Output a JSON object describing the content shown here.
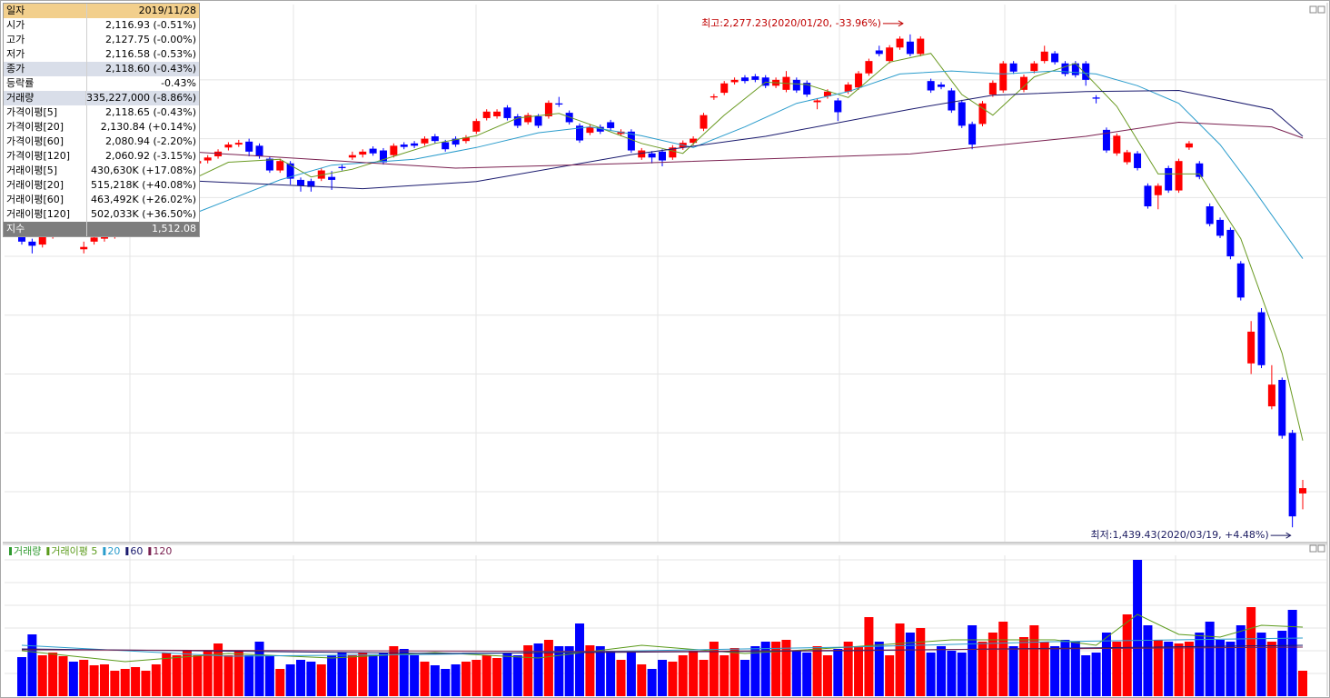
{
  "chart_data": [
    {
      "type": "candlestick",
      "open": [
        1935,
        1925,
        1920,
        1935,
        1950,
        1960,
        1912,
        1925,
        1930,
        1935,
        1950,
        1975,
        1990,
        2010,
        2020,
        2035,
        2045,
        2058,
        2063,
        2070,
        2085,
        2090,
        2095,
        2088,
        2066,
        2046,
        2058,
        2030,
        2028,
        2032,
        2035,
        2052,
        2068,
        2073,
        2083,
        2080,
        2072,
        2090,
        2092,
        2092,
        2104,
        2094,
        2100,
        2096,
        2112,
        2135,
        2138,
        2153,
        2138,
        2128,
        2138,
        2138,
        2160,
        2144,
        2122,
        2110,
        2120,
        2128,
        2108,
        2112,
        2068,
        2075,
        2078,
        2068,
        2085,
        2093,
        2117,
        2170,
        2178,
        2196,
        2204,
        2206,
        2204,
        2190,
        2183,
        2200,
        2195,
        2162,
        2172,
        2165,
        2180,
        2187,
        2211,
        2250,
        2232,
        2255,
        2265,
        2244,
        2198,
        2192,
        2182,
        2162,
        2125,
        2125,
        2175,
        2182,
        2228,
        2183,
        2215,
        2232,
        2245,
        2228,
        2228,
        2228,
        2170,
        2115,
        2075,
        2060,
        2075,
        2020,
        2004,
        2050,
        2012,
        2085,
        2058,
        1985,
        1962,
        1945,
        1888,
        1718,
        1805,
        1645,
        1690,
        1600,
        1497
      ],
      "high": [
        1940,
        1930,
        1940,
        1955,
        1965,
        1965,
        1925,
        1937,
        1940,
        1955,
        1980,
        1995,
        2015,
        2025,
        2040,
        2050,
        2060,
        2066,
        2072,
        2082,
        2094,
        2098,
        2100,
        2092,
        2070,
        2066,
        2062,
        2034,
        2032,
        2050,
        2045,
        2056,
        2078,
        2082,
        2087,
        2084,
        2092,
        2094,
        2096,
        2104,
        2108,
        2098,
        2104,
        2106,
        2134,
        2150,
        2150,
        2157,
        2142,
        2144,
        2142,
        2165,
        2171,
        2148,
        2126,
        2124,
        2124,
        2132,
        2116,
        2116,
        2084,
        2079,
        2082,
        2089,
        2097,
        2104,
        2144,
        2176,
        2198,
        2204,
        2208,
        2210,
        2208,
        2204,
        2215,
        2204,
        2199,
        2169,
        2184,
        2169,
        2196,
        2215,
        2236,
        2258,
        2259,
        2274,
        2277.23,
        2274,
        2202,
        2196,
        2186,
        2166,
        2129,
        2164,
        2199,
        2232,
        2232,
        2209,
        2232,
        2258,
        2249,
        2232,
        2232,
        2232,
        2174,
        2119,
        2109,
        2081,
        2079,
        2024,
        2024,
        2054,
        2066,
        2096,
        2062,
        1990,
        1966,
        1949,
        1892,
        1790,
        1812,
        1715,
        1694,
        1605,
        1520
      ],
      "low": [
        1920,
        1905,
        1915,
        1930,
        1945,
        1940,
        1905,
        1920,
        1925,
        1930,
        1945,
        1970,
        1985,
        2005,
        2015,
        2030,
        2040,
        2054,
        2058,
        2066,
        2080,
        2086,
        2070,
        2066,
        2042,
        2042,
        2022,
        2010,
        2010,
        2028,
        2013,
        2046,
        2064,
        2068,
        2071,
        2056,
        2068,
        2082,
        2084,
        2088,
        2092,
        2078,
        2086,
        2092,
        2108,
        2131,
        2134,
        2131,
        2118,
        2124,
        2118,
        2134,
        2154,
        2124,
        2093,
        2106,
        2108,
        2114,
        2104,
        2076,
        2064,
        2058,
        2053,
        2064,
        2081,
        2089,
        2113,
        2166,
        2174,
        2192,
        2194,
        2196,
        2186,
        2186,
        2179,
        2178,
        2171,
        2150,
        2168,
        2130,
        2176,
        2183,
        2207,
        2240,
        2228,
        2251,
        2240,
        2240,
        2178,
        2184,
        2144,
        2118,
        2082,
        2121,
        2171,
        2178,
        2210,
        2179,
        2211,
        2228,
        2226,
        2206,
        2204,
        2190,
        2160,
        2076,
        2071,
        2056,
        2046,
        1981,
        1980,
        2008,
        2008,
        2081,
        2031,
        1951,
        1931,
        1895,
        1825,
        1700,
        1710,
        1640,
        1590,
        1439.43,
        1470
      ],
      "close": [
        1925,
        1918,
        1935,
        1950,
        1960,
        1945,
        1916,
        1932,
        1935,
        1950,
        1975,
        1990,
        2010,
        2020,
        2035,
        2045,
        2055,
        2062,
        2068,
        2078,
        2090,
        2093,
        2078,
        2070,
        2046,
        2062,
        2032,
        2020,
        2018,
        2046,
        2030,
        2050,
        2072,
        2078,
        2075,
        2060,
        2088,
        2086,
        2088,
        2100,
        2096,
        2082,
        2090,
        2102,
        2130,
        2146,
        2146,
        2135,
        2122,
        2140,
        2122,
        2161,
        2158,
        2128,
        2097,
        2120,
        2112,
        2118,
        2112,
        2080,
        2080,
        2068,
        2063,
        2085,
        2093,
        2100,
        2140,
        2172,
        2194,
        2200,
        2198,
        2200,
        2190,
        2200,
        2205,
        2182,
        2175,
        2165,
        2180,
        2145,
        2192,
        2211,
        2232,
        2244,
        2255,
        2270,
        2244,
        2270,
        2182,
        2188,
        2148,
        2122,
        2090,
        2160,
        2195,
        2228,
        2214,
        2205,
        2228,
        2248,
        2230,
        2210,
        2208,
        2200,
        2168,
        2080,
        2105,
        2077,
        2050,
        1985,
        2020,
        2012,
        2062,
        2092,
        2035,
        1955,
        1935,
        1900,
        1830,
        1772,
        1715,
        1682,
        1595,
        1458,
        1506
      ],
      "up_color": "#ff0000",
      "down_color": "#0000ff",
      "ylim": [
        1415,
        2328
      ],
      "yticks": [
        1500,
        1600,
        1700,
        1800,
        1900,
        2000,
        2100,
        2200
      ],
      "grid": true,
      "lines": [
        {
          "color": "#6a9a22",
          "x": [
            17,
            20,
            25,
            28,
            32,
            36,
            40,
            44,
            48,
            52,
            56,
            60,
            64,
            68,
            72,
            76,
            80,
            84,
            88,
            91,
            94,
            98,
            102,
            106,
            110,
            114,
            118,
            122,
            124
          ],
          "values": [
            2035,
            2060,
            2065,
            2035,
            2048,
            2070,
            2092,
            2105,
            2135,
            2143,
            2118,
            2092,
            2075,
            2140,
            2196,
            2192,
            2170,
            2230,
            2245,
            2175,
            2140,
            2205,
            2228,
            2155,
            2040,
            2040,
            1930,
            1735,
            1587
          ]
        },
        {
          "color": "#2a9ccc",
          "x": [
            17,
            25,
            30,
            38,
            44,
            50,
            55,
            60,
            65,
            70,
            75,
            80,
            85,
            90,
            95,
            100,
            104,
            108,
            112,
            116,
            119,
            124
          ],
          "values": [
            1975,
            2030,
            2055,
            2065,
            2085,
            2110,
            2120,
            2105,
            2085,
            2120,
            2160,
            2180,
            2210,
            2215,
            2210,
            2215,
            2210,
            2190,
            2160,
            2090,
            2020,
            1896
          ]
        },
        {
          "color": "#1a1a6e",
          "x": [
            17,
            33,
            44,
            59,
            72,
            86,
            94,
            103,
            112,
            121,
            124
          ],
          "values": [
            2028,
            2015,
            2027,
            2073,
            2104,
            2150,
            2174,
            2180,
            2182,
            2150,
            2104
          ]
        },
        {
          "color": "#7a2050",
          "x": [
            17,
            42,
            59,
            86,
            103,
            112,
            121,
            124
          ],
          "values": [
            2077,
            2050,
            2058,
            2074,
            2104,
            2128,
            2120,
            2101
          ]
        }
      ],
      "annotations": [
        {
          "text": "최고:2,277.23(2020/01/20, -33.96%)",
          "at": "max",
          "color": "#c00000"
        },
        {
          "text": "최저:1,439.43(2020/03/19, +4.48%)",
          "at": "min",
          "color": "#1a1a60"
        }
      ]
    },
    {
      "type": "bar",
      "up_color": "#ff0000",
      "down_color": "#0000ff",
      "ylim": [
        0,
        1550
      ],
      "yticks": [
        250,
        500,
        750,
        1000,
        1250,
        1500
      ],
      "grid": true,
      "series": [
        {
          "name": "거래량",
          "color": "#2f9a2f",
          "values": [
            430,
            680,
            450,
            480,
            440,
            380,
            400,
            340,
            350,
            280,
            300,
            320,
            280,
            350,
            480,
            450,
            500,
            450,
            500,
            580,
            450,
            500,
            450,
            600,
            450,
            300,
            350,
            400,
            380,
            350,
            450,
            480,
            450,
            480,
            450,
            480,
            550,
            520,
            450,
            380,
            340,
            300,
            350,
            380,
            400,
            450,
            420,
            480,
            450,
            560,
            580,
            620,
            550,
            550,
            800,
            560,
            550,
            500,
            400,
            500,
            350,
            300,
            400,
            380,
            450,
            500,
            400,
            600,
            450,
            530,
            400,
            550,
            600,
            600,
            620,
            500,
            480,
            550,
            450,
            520,
            600,
            550,
            870,
            600,
            450,
            800,
            700,
            750,
            480,
            550,
            500,
            480,
            780,
            600,
            700,
            820,
            550,
            650,
            780,
            600,
            550,
            620,
            600,
            450,
            480,
            700,
            600,
            900,
            1500,
            780,
            620,
            600,
            580,
            600,
            700,
            820,
            620,
            600,
            780,
            980,
            700,
            600,
            720,
            950,
            280
          ]
        },
        {
          "name": "거래이평 5",
          "color": "#5a9a1a",
          "x": [
            0,
            10,
            20,
            30,
            40,
            50,
            60,
            70,
            80,
            90,
            100,
            104,
            108,
            112,
            116,
            120,
            124
          ],
          "values": [
            500,
            380,
            470,
            420,
            480,
            420,
            560,
            470,
            540,
            620,
            620,
            560,
            900,
            680,
            650,
            780,
            760
          ]
        },
        {
          "name": "20",
          "color": "#2a9ccc",
          "x": [
            0,
            20,
            40,
            60,
            80,
            100,
            124
          ],
          "values": [
            560,
            440,
            460,
            500,
            540,
            600,
            640
          ]
        },
        {
          "name": "60",
          "color": "#1a1a6e",
          "x": [
            0,
            40,
            80,
            124
          ],
          "values": [
            520,
            470,
            500,
            560
          ]
        },
        {
          "name": "120",
          "color": "#7a2050",
          "x": [
            0,
            60,
            124
          ],
          "values": [
            510,
            490,
            540
          ]
        }
      ]
    }
  ],
  "info_panel": {
    "rows": [
      [
        "일자",
        "2019/11/28"
      ],
      [
        "시가",
        "2,116.93 (-0.51%)"
      ],
      [
        "고가",
        "2,127.75 (-0.00%)"
      ],
      [
        "저가",
        "2,116.58 (-0.53%)"
      ],
      [
        "종가",
        "2,118.60 (-0.43%)"
      ],
      [
        "등락률",
        "-0.43%"
      ],
      [
        "거래량",
        "335,227,000 (-8.86%)"
      ],
      [
        "가격이평[5]",
        "2,118.65 (-0.43%)"
      ],
      [
        "가격이평[20]",
        "2,130.84 (+0.14%)"
      ],
      [
        "가격이평[60]",
        "2,080.94 (-2.20%)"
      ],
      [
        "가격이평[120]",
        "2,060.92 (-3.15%)"
      ],
      [
        "거래이평[5]",
        "430,630K (+17.08%)"
      ],
      [
        "거래이평[20]",
        "515,218K (+40.08%)"
      ],
      [
        "거래이평[60]",
        "463,492K (+26.02%)"
      ],
      [
        "거래이평[120]",
        "502,033K (+36.50%)"
      ],
      [
        "지수",
        "1,512.08"
      ]
    ]
  }
}
